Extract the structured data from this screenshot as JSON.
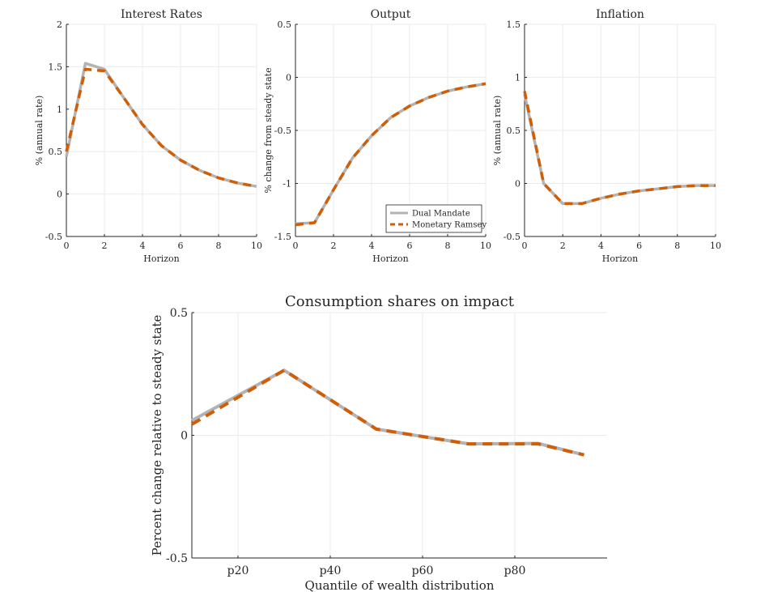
{
  "chart_data": [
    {
      "type": "line",
      "title": "Interest Rates",
      "xlabel": "Horizon",
      "ylabel": "% (annual rate)",
      "xlim": [
        0,
        10
      ],
      "ylim": [
        -0.5,
        2
      ],
      "xticks": [
        0,
        2,
        4,
        6,
        8,
        10
      ],
      "yticks": [
        -0.5,
        0,
        0.5,
        1,
        1.5,
        2
      ],
      "xtick_labels": [
        "0",
        "2",
        "4",
        "6",
        "8",
        "10"
      ],
      "ytick_labels": [
        "-0.5",
        "0",
        "0.5",
        "1",
        "1.5",
        "2"
      ],
      "grid": true,
      "x": [
        0,
        1,
        2,
        3,
        4,
        5,
        6,
        7,
        8,
        9,
        10
      ],
      "series": [
        {
          "values": [
            0.44,
            1.54,
            1.47,
            1.14,
            0.82,
            0.57,
            0.4,
            0.28,
            0.19,
            0.13,
            0.09
          ]
        },
        {
          "values": [
            0.5,
            1.47,
            1.45,
            1.14,
            0.82,
            0.57,
            0.4,
            0.28,
            0.19,
            0.13,
            0.09
          ]
        }
      ]
    },
    {
      "type": "line",
      "title": "Output",
      "xlabel": "Horizon",
      "ylabel": "% change from steady state",
      "xlim": [
        0,
        10
      ],
      "ylim": [
        -1.5,
        0.5
      ],
      "xticks": [
        0,
        2,
        4,
        6,
        8,
        10
      ],
      "yticks": [
        -1.5,
        -1,
        -0.5,
        0,
        0.5
      ],
      "xtick_labels": [
        "0",
        "2",
        "4",
        "6",
        "8",
        "10"
      ],
      "ytick_labels": [
        "-1.5",
        "-1",
        "-0.5",
        "0",
        "0.5"
      ],
      "grid": true,
      "legend_position": "bottom-right",
      "x": [
        0,
        1,
        2,
        3,
        4,
        5,
        6,
        7,
        8,
        9,
        10
      ],
      "series": [
        {
          "name": "Dual Mandate",
          "values": [
            -1.38,
            -1.37,
            -1.06,
            -0.76,
            -0.55,
            -0.38,
            -0.27,
            -0.19,
            -0.13,
            -0.09,
            -0.06
          ]
        },
        {
          "name": "Monetary Ramsey",
          "values": [
            -1.39,
            -1.37,
            -1.06,
            -0.76,
            -0.55,
            -0.38,
            -0.27,
            -0.19,
            -0.13,
            -0.09,
            -0.06
          ]
        }
      ]
    },
    {
      "type": "line",
      "title": "Inflation",
      "xlabel": "Horizon",
      "ylabel": "% (annual rate)",
      "xlim": [
        0,
        10
      ],
      "ylim": [
        -0.5,
        1.5
      ],
      "xticks": [
        0,
        2,
        4,
        6,
        8,
        10
      ],
      "yticks": [
        -0.5,
        0,
        0.5,
        1,
        1.5
      ],
      "xtick_labels": [
        "0",
        "2",
        "4",
        "6",
        "8",
        "10"
      ],
      "ytick_labels": [
        "-0.5",
        "0",
        "0.5",
        "1",
        "1.5"
      ],
      "grid": true,
      "x": [
        0,
        1,
        2,
        3,
        4,
        5,
        6,
        7,
        8,
        9,
        10
      ],
      "series": [
        {
          "values": [
            0.84,
            0.0,
            -0.19,
            -0.19,
            -0.14,
            -0.1,
            -0.07,
            -0.05,
            -0.03,
            -0.02,
            -0.02
          ]
        },
        {
          "values": [
            0.87,
            0.0,
            -0.19,
            -0.19,
            -0.14,
            -0.1,
            -0.07,
            -0.05,
            -0.03,
            -0.02,
            -0.02
          ]
        }
      ]
    },
    {
      "type": "line",
      "title": "Consumption shares on impact",
      "xlabel": "Quantile of wealth distribution",
      "ylabel": "Percent change relative to steady state",
      "xlim": [
        10,
        100
      ],
      "ylim": [
        -0.5,
        0.5
      ],
      "xticks": [
        20,
        40,
        60,
        80
      ],
      "yticks": [
        -0.5,
        0,
        0.5
      ],
      "xtick_labels": [
        "p20",
        "p40",
        "p60",
        "p80"
      ],
      "ytick_labels": [
        "-0.5",
        "0",
        "0.5"
      ],
      "grid": true,
      "x": [
        10,
        30,
        50,
        70,
        85,
        95
      ],
      "series": [
        {
          "values": [
            0.06,
            0.265,
            0.025,
            -0.035,
            -0.033,
            -0.08
          ]
        },
        {
          "values": [
            0.045,
            0.265,
            0.025,
            -0.035,
            -0.035,
            -0.08
          ]
        }
      ]
    }
  ],
  "style": {
    "dual_color": "#b3b3b3",
    "ramsey_color": "#d15e06",
    "grid_color": "#ebebeb",
    "axis_color": "#262626"
  }
}
